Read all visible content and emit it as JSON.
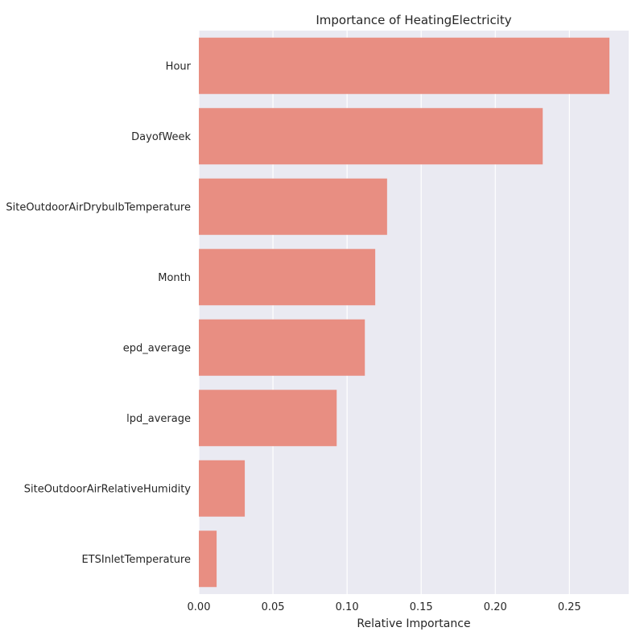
{
  "chart_data": {
    "type": "bar",
    "orientation": "horizontal",
    "title": "Importance of HeatingElectricity",
    "xlabel": "Relative Importance",
    "ylabel": "",
    "categories": [
      "Hour",
      "DayofWeek",
      "SiteOutdoorAirDrybulbTemperature",
      "Month",
      "epd_average",
      "lpd_average",
      "SiteOutdoorAirRelativeHumidity",
      "ETSInletTemperature"
    ],
    "values": [
      0.277,
      0.232,
      0.127,
      0.119,
      0.112,
      0.093,
      0.031,
      0.012
    ],
    "xlim": [
      0,
      0.29
    ],
    "xticks": [
      0.0,
      0.05,
      0.1,
      0.15,
      0.2,
      0.25
    ],
    "xtick_labels": [
      "0.00",
      "0.05",
      "0.10",
      "0.15",
      "0.20",
      "0.25"
    ],
    "grid": "vertical",
    "bar_color": "#e88e82",
    "background_color": "#eaeaf2",
    "grid_color": "#ffffff"
  }
}
